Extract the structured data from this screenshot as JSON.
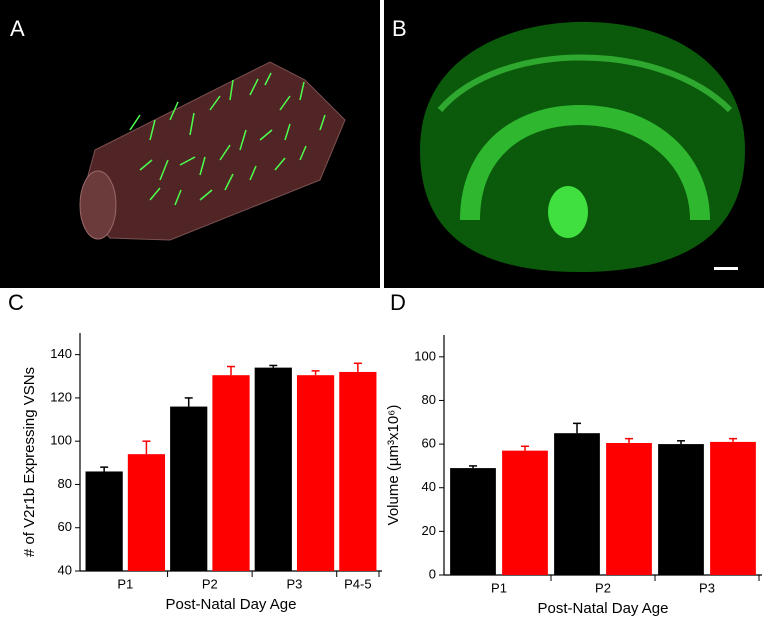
{
  "panel_labels": [
    "A",
    "B",
    "C",
    "D"
  ],
  "chart_data": [
    {
      "type": "bar",
      "ylabel": "# of V2r1b Expressing VSNs",
      "xlabel": "Post-Natal Day Age",
      "categories": [
        "P1",
        "P2",
        "P3",
        "P4-5"
      ],
      "series": [
        {
          "color": "#000000",
          "values": [
            86,
            116,
            134,
            null
          ],
          "errors": [
            2,
            4,
            1,
            null
          ]
        },
        {
          "color": "#ff0000",
          "values": [
            94,
            130.5,
            130.5,
            132
          ],
          "errors": [
            6,
            4,
            2,
            4
          ]
        }
      ],
      "ylim": [
        40,
        150
      ],
      "yticks": [
        40,
        60,
        80,
        100,
        120,
        140
      ]
    },
    {
      "type": "bar",
      "ylabel": "Volume (µm³x10⁶)",
      "xlabel": "Post-Natal Day Age",
      "categories": [
        "P1",
        "P2",
        "P3"
      ],
      "series": [
        {
          "color": "#000000",
          "values": [
            49,
            65,
            60
          ],
          "errors": [
            1,
            4.5,
            1.5
          ]
        },
        {
          "color": "#ff0000",
          "values": [
            57,
            60.5,
            61
          ],
          "errors": [
            2,
            2,
            1.5
          ]
        }
      ],
      "ylim": [
        0,
        110
      ],
      "yticks": [
        0,
        20,
        40,
        60,
        80,
        100
      ]
    }
  ]
}
